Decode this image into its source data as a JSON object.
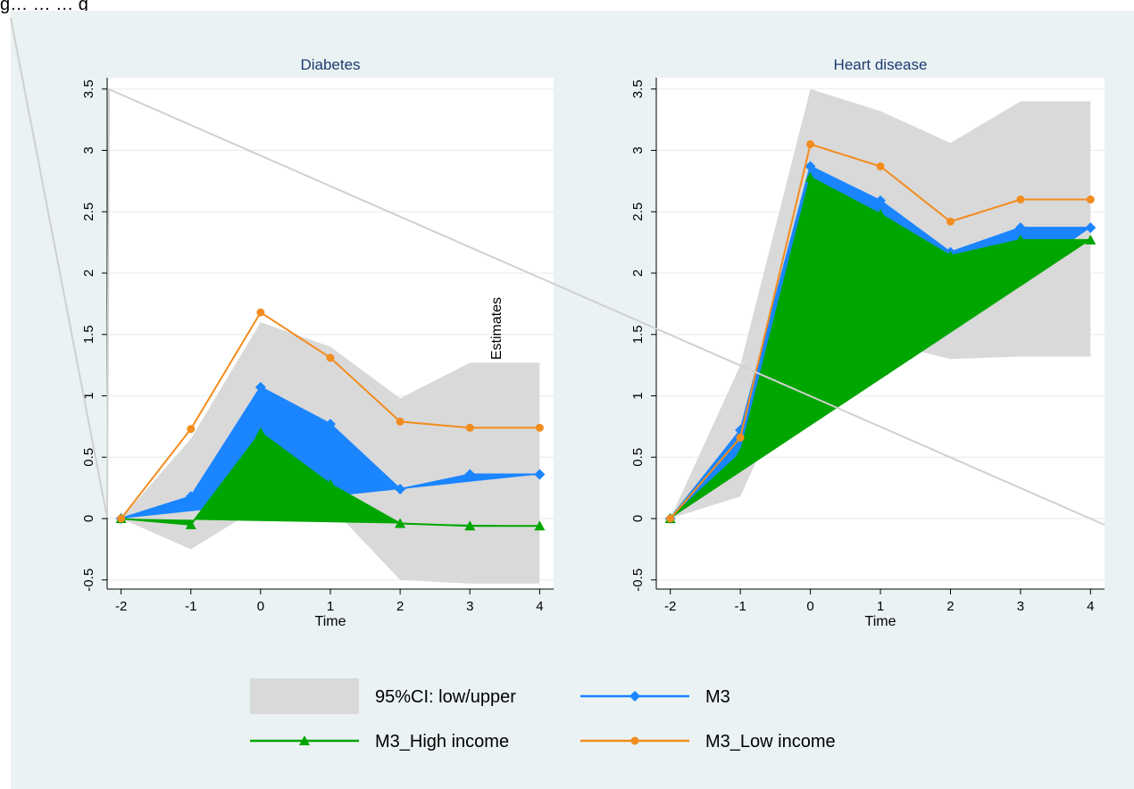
{
  "top_fragment": "g… … … g",
  "chart_data": {
    "type": "line",
    "x": [
      -2,
      -1,
      0,
      1,
      2,
      3,
      4
    ],
    "xlabel": "Time",
    "ylabel": "Estimates",
    "ylim": [
      -0.5,
      3.6
    ],
    "xlim": [
      -2.2,
      4.2
    ],
    "yticks": [
      "-0.5",
      "0",
      "0.5",
      "1",
      "1.5",
      "2",
      "2.5",
      "3",
      "3.5"
    ],
    "xticks": [
      "-2",
      "-1",
      "0",
      "1",
      "2",
      "3",
      "4"
    ],
    "grid": true,
    "legend_position": "bottom",
    "colors": {
      "background": "#eaf2f3",
      "ci_band": "#d9d9d9",
      "m3": "#1a85ff",
      "m3_high_income": "#00a600",
      "m3_low_income": "#f28c1e",
      "diagonal_line": "#d0d0d0"
    },
    "legend": [
      {
        "key": "ci",
        "label": "95%CI: low/upper"
      },
      {
        "key": "m3",
        "label": "M3"
      },
      {
        "key": "high",
        "label": "M3_High income"
      },
      {
        "key": "low",
        "label": "M3_Low income"
      }
    ],
    "panels": [
      {
        "title": "Diabetes",
        "ci_lower": [
          0,
          -0.25,
          0.1,
          0.1,
          -0.5,
          -0.53,
          -0.53
        ],
        "ci_upper": [
          0,
          0.65,
          1.6,
          1.4,
          0.98,
          1.27,
          1.27
        ],
        "series": [
          {
            "name": "M3",
            "values": [
              0,
              0.18,
              1.07,
              0.77,
              0.24,
              0.36,
              0.36
            ]
          },
          {
            "name": "M3_High income",
            "values": [
              0,
              -0.05,
              0.7,
              0.28,
              -0.04,
              -0.06,
              -0.06
            ]
          },
          {
            "name": "M3_Low income",
            "values": [
              0,
              0.73,
              1.68,
              1.31,
              0.79,
              0.74,
              0.74
            ]
          }
        ]
      },
      {
        "title": "Heart disease",
        "ci_lower": [
          0,
          0.18,
          1.44,
          1.44,
          1.3,
          1.32,
          1.32
        ],
        "ci_upper": [
          0,
          1.25,
          3.5,
          3.32,
          3.06,
          3.4,
          3.4
        ],
        "series": [
          {
            "name": "M3",
            "values": [
              0,
              0.72,
              2.87,
              2.59,
              2.17,
              2.37,
              2.37
            ]
          },
          {
            "name": "M3_High income",
            "values": [
              0,
              0.53,
              2.78,
              2.48,
              2.14,
              2.27,
              2.27
            ]
          },
          {
            "name": "M3_Low income",
            "values": [
              0,
              0.66,
              3.05,
              2.87,
              2.42,
              2.6,
              2.6
            ]
          }
        ]
      }
    ]
  }
}
